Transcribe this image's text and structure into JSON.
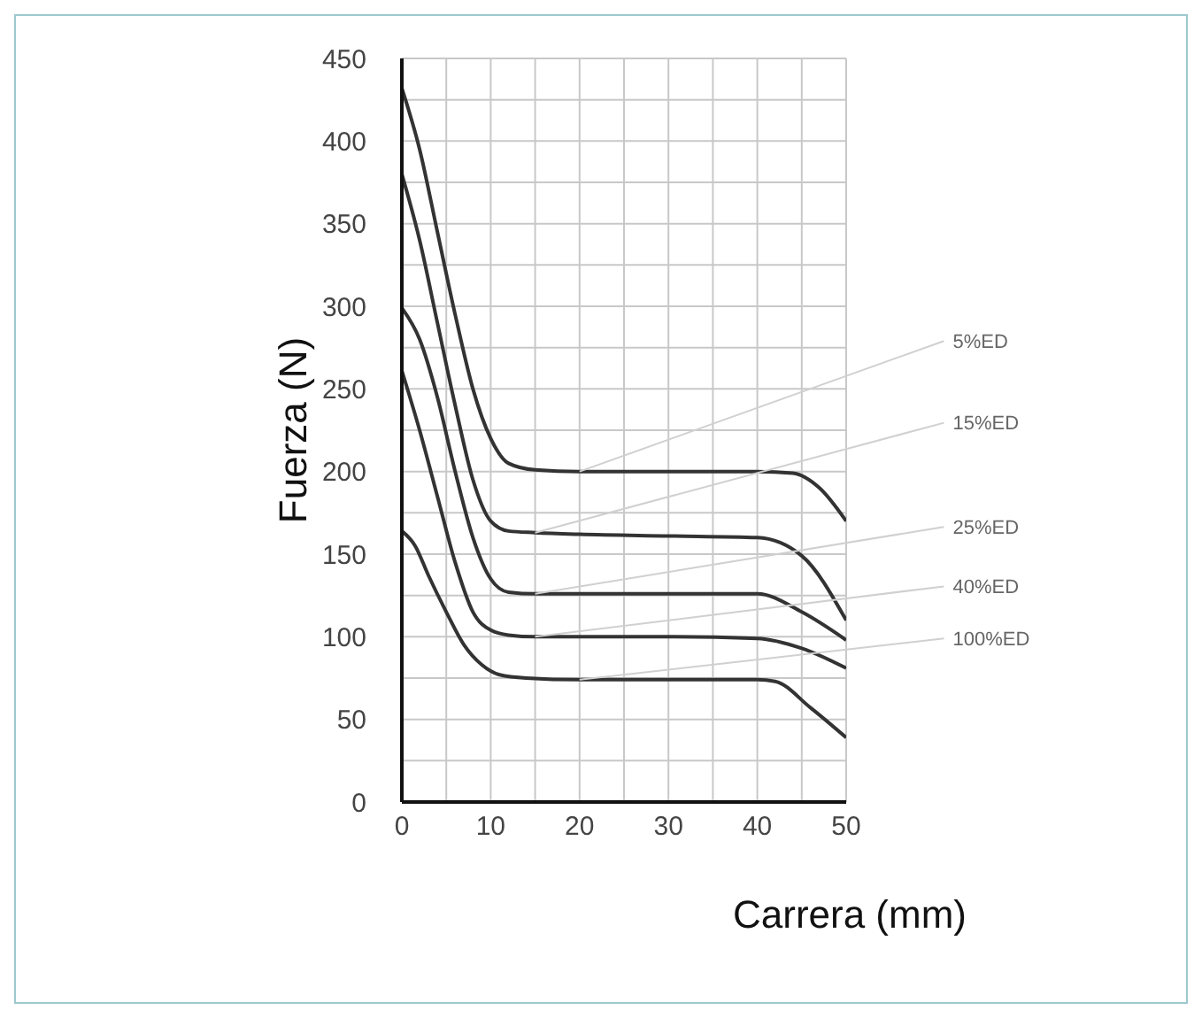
{
  "chart_data": {
    "type": "line",
    "xlabel": "Carrera (mm)",
    "ylabel": "Fuerza (N)",
    "xlim": [
      0,
      50
    ],
    "ylim": [
      0,
      450
    ],
    "xticks": [
      0,
      {
        "value": 5,
        "label": null
      },
      10,
      {
        "value": 15,
        "label": null
      },
      20,
      {
        "value": 25,
        "label": null
      },
      30,
      {
        "value": 35,
        "label": null
      },
      40,
      {
        "value": 45,
        "label": null
      },
      50
    ],
    "yticks": [
      0,
      {
        "value": 25,
        "label": null
      },
      50,
      {
        "value": 75,
        "label": null
      },
      100,
      {
        "value": 125,
        "label": null
      },
      150,
      {
        "value": 175,
        "label": null
      },
      200,
      {
        "value": 225,
        "label": null
      },
      250,
      {
        "value": 275,
        "label": null
      },
      300,
      {
        "value": 325,
        "label": null
      },
      350,
      {
        "value": 375,
        "label": null
      },
      400,
      {
        "value": 425,
        "label": null
      },
      450
    ],
    "grid": true,
    "legend": false,
    "marker": "none",
    "line_style": "solid",
    "series": [
      {
        "name": "5%ED",
        "color": "#333333",
        "x": [
          0,
          2,
          4,
          6,
          8,
          10,
          12,
          15,
          20,
          30,
          40,
          44,
          47,
          50
        ],
        "values": [
          432,
          395,
          345,
          295,
          250,
          220,
          205,
          201,
          200,
          200,
          200,
          199,
          190,
          170
        ]
      },
      {
        "name": "15%ED",
        "color": "#333333",
        "x": [
          0,
          2,
          4,
          6,
          8,
          10,
          12,
          15,
          20,
          30,
          40,
          45,
          50
        ],
        "values": [
          380,
          340,
          290,
          240,
          195,
          170,
          164,
          163,
          162,
          161,
          160,
          149,
          110
        ]
      },
      {
        "name": "25%ED",
        "color": "#333333",
        "x": [
          0,
          2,
          4,
          6,
          8,
          10,
          12,
          15,
          20,
          30,
          40,
          45,
          50
        ],
        "values": [
          299,
          280,
          245,
          200,
          160,
          135,
          127,
          126,
          126,
          126,
          126,
          115,
          98
        ]
      },
      {
        "name": "40%ED",
        "color": "#333333",
        "x": [
          0,
          2,
          4,
          6,
          8,
          10,
          12,
          15,
          20,
          30,
          40,
          45,
          50
        ],
        "values": [
          261,
          225,
          185,
          145,
          115,
          104,
          101,
          100,
          100,
          100,
          99,
          93,
          81
        ]
      },
      {
        "name": "100%ED",
        "color": "#333333",
        "x": [
          0,
          1.5,
          3,
          5,
          7,
          9,
          11,
          14,
          20,
          30,
          40,
          42,
          46,
          50
        ],
        "values": [
          164,
          155,
          137,
          115,
          95,
          83,
          77,
          75,
          74,
          74,
          74,
          73,
          57,
          39
        ]
      }
    ]
  }
}
